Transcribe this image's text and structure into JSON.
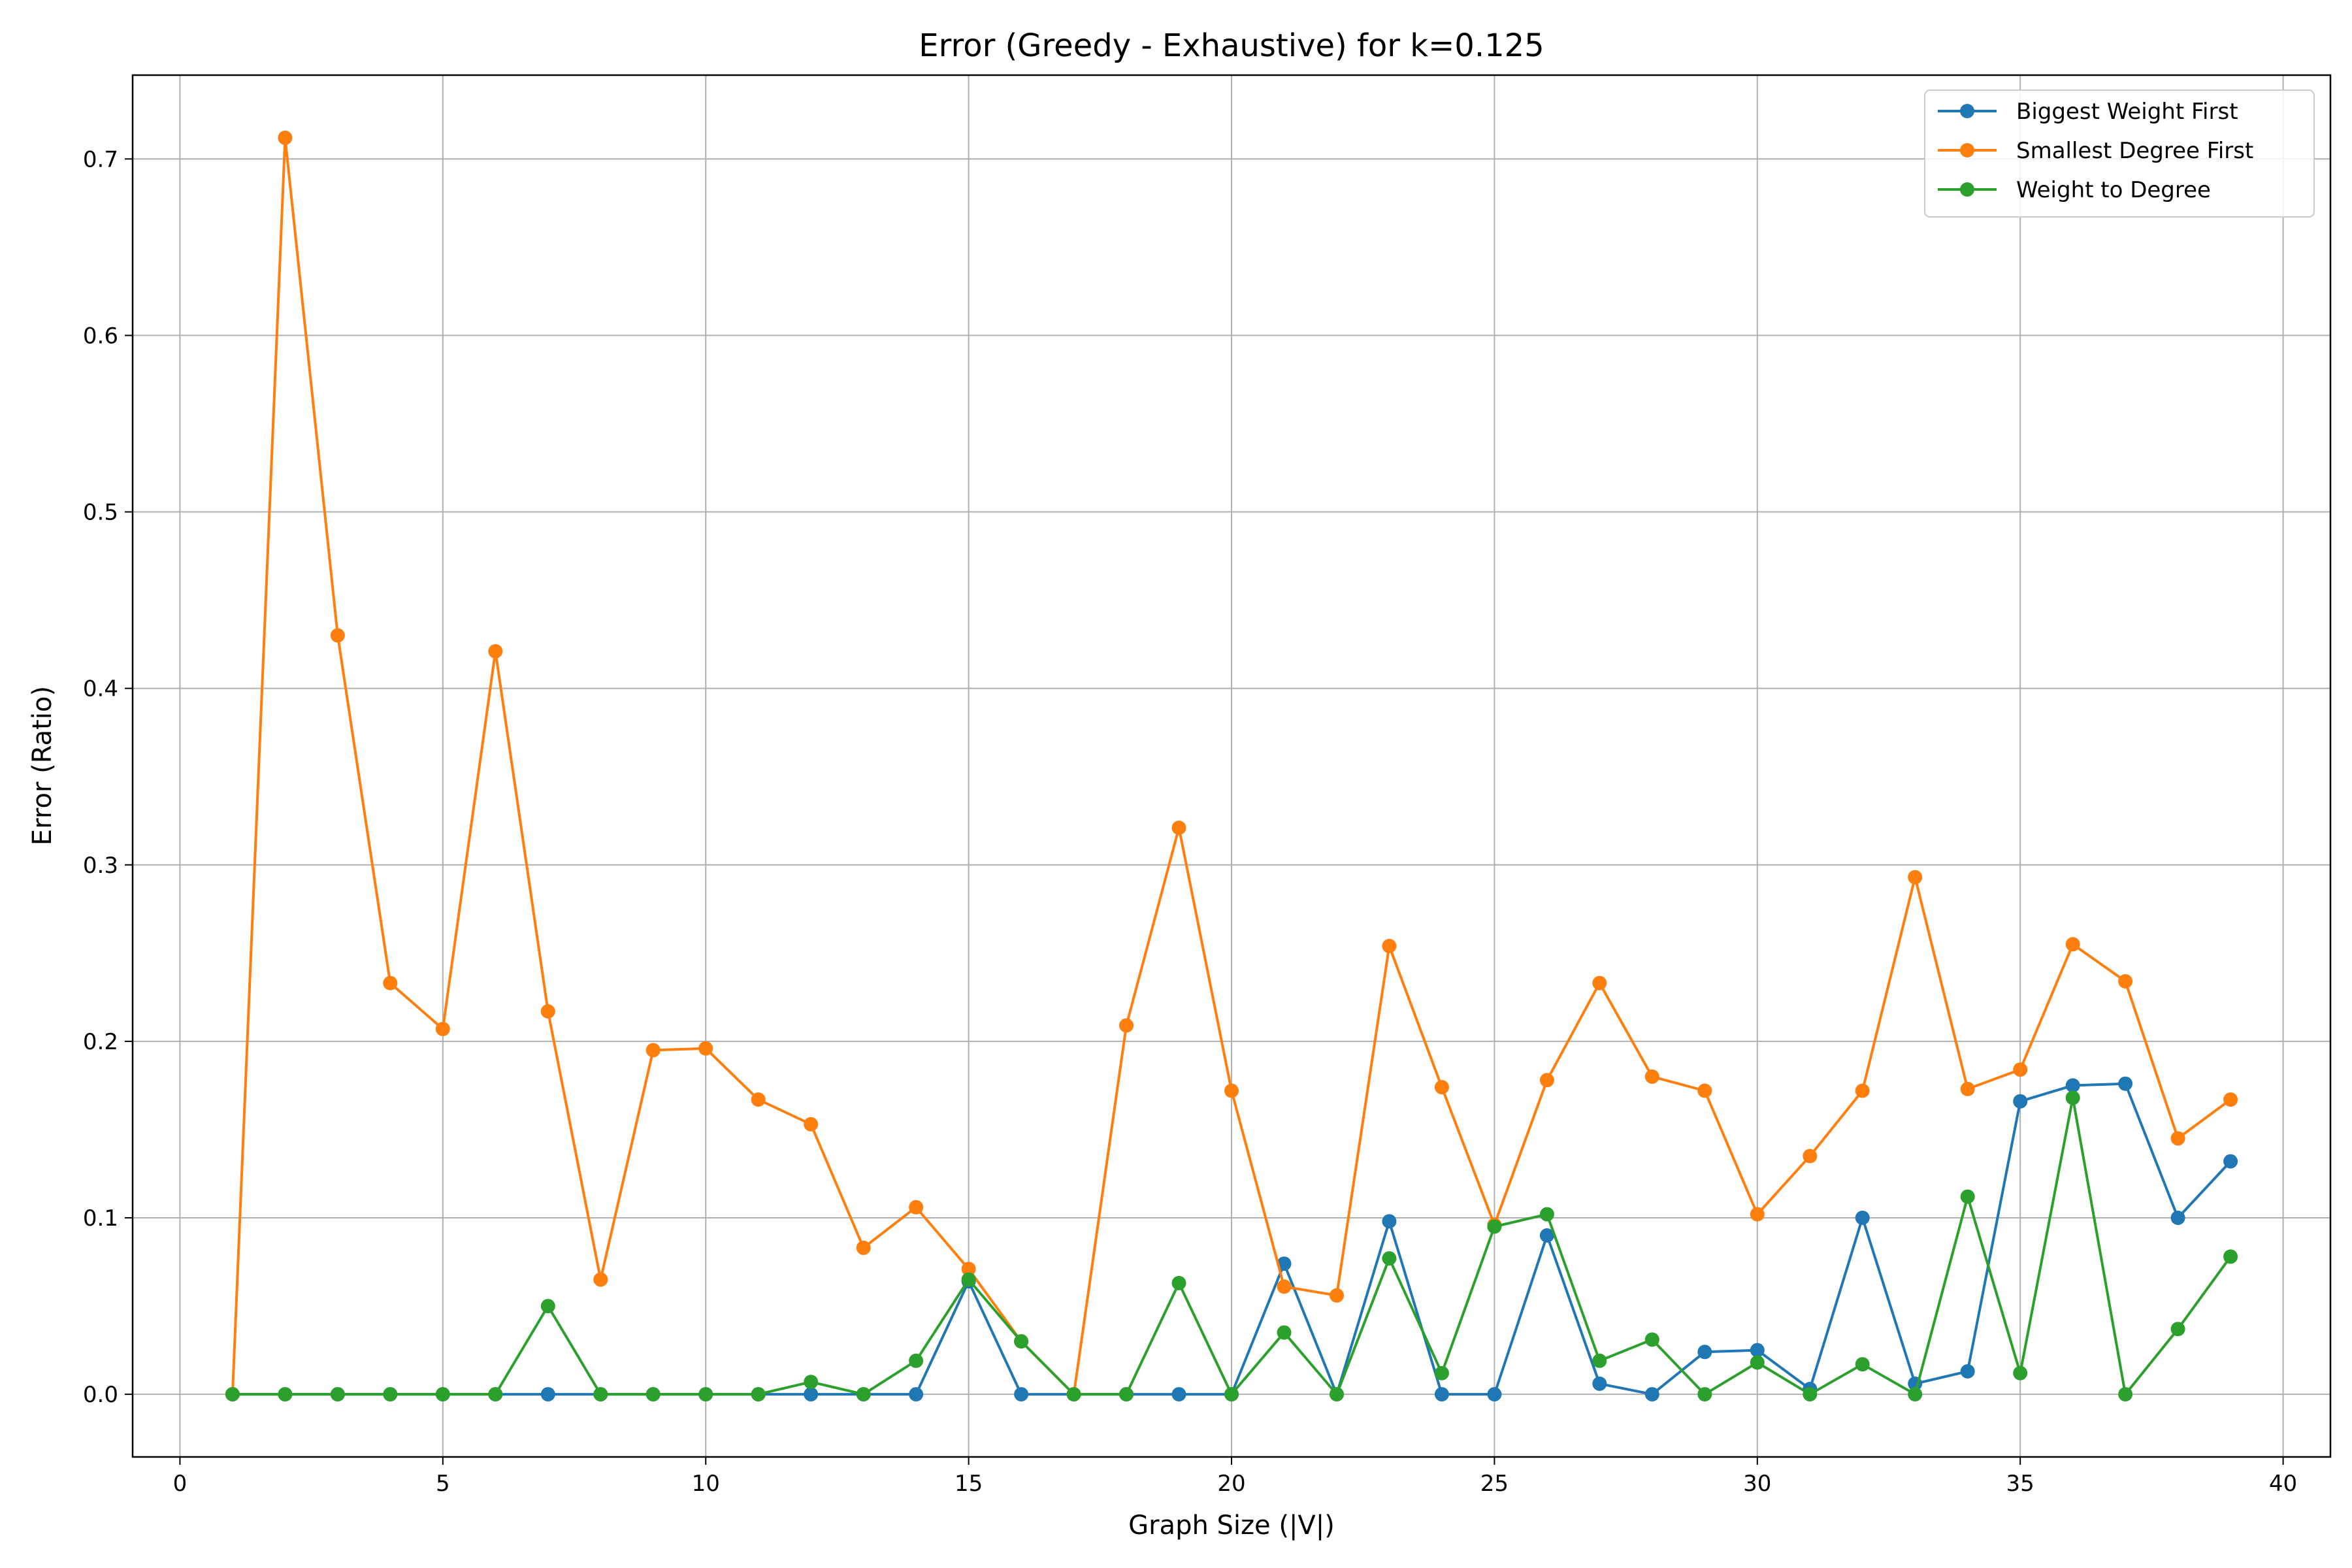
{
  "chart_data": {
    "type": "line",
    "title": "Error (Greedy - Exhaustive) for k=0.125",
    "xlabel": "Graph Size (|V|)",
    "ylabel": "Error (Ratio)",
    "xlim": [
      -0.9,
      40.9
    ],
    "ylim": [
      -0.0355,
      0.7475
    ],
    "xticks": [
      0,
      5,
      10,
      15,
      20,
      25,
      30,
      35,
      40
    ],
    "xtick_labels": [
      "0",
      "5",
      "10",
      "15",
      "20",
      "25",
      "30",
      "35",
      "40"
    ],
    "yticks": [
      0.0,
      0.1,
      0.2,
      0.3,
      0.4,
      0.5,
      0.6,
      0.7
    ],
    "ytick_labels": [
      "0.0",
      "0.1",
      "0.2",
      "0.3",
      "0.4",
      "0.5",
      "0.6",
      "0.7"
    ],
    "grid": true,
    "legend_position": "top-right",
    "x": [
      1,
      2,
      3,
      4,
      5,
      6,
      7,
      8,
      9,
      10,
      11,
      12,
      13,
      14,
      15,
      16,
      17,
      18,
      19,
      20,
      21,
      22,
      23,
      24,
      25,
      26,
      27,
      28,
      29,
      30,
      31,
      32,
      33,
      34,
      35,
      36,
      37,
      38,
      39
    ],
    "series": [
      {
        "name": "Biggest Weight First",
        "color": "#1f77b4",
        "values": [
          0,
          0,
          0,
          0,
          0,
          0,
          0,
          0,
          0,
          0,
          0,
          0,
          0,
          0,
          0.064,
          0,
          0,
          0,
          0,
          0,
          0.074,
          0,
          0.098,
          0,
          0,
          0.09,
          0.006,
          0,
          0.024,
          0.025,
          0.003,
          0.1,
          0.006,
          0.013,
          0.166,
          0.175,
          0.176,
          0.1,
          0.132
        ]
      },
      {
        "name": "Smallest Degree First",
        "color": "#ff7f0e",
        "values": [
          0,
          0.712,
          0.43,
          0.233,
          0.207,
          0.421,
          0.217,
          0.065,
          0.195,
          0.196,
          0.167,
          0.153,
          0.083,
          0.106,
          0.071,
          0.03,
          0,
          0.209,
          0.321,
          0.172,
          0.061,
          0.056,
          0.254,
          0.174,
          0.096,
          0.178,
          0.233,
          0.18,
          0.172,
          0.102,
          0.135,
          0.172,
          0.293,
          0.173,
          0.184,
          0.255,
          0.234,
          0.145,
          0.167
        ]
      },
      {
        "name": "Weight to Degree",
        "color": "#2ca02c",
        "values": [
          0,
          0,
          0,
          0,
          0,
          0,
          0.05,
          0,
          0,
          0,
          0,
          0.007,
          0,
          0.019,
          0.065,
          0.03,
          0,
          0,
          0.063,
          0,
          0.035,
          0,
          0.077,
          0.012,
          0.095,
          0.102,
          0.019,
          0.031,
          0,
          0.018,
          0,
          0.017,
          0,
          0.112,
          0.012,
          0.168,
          0,
          0.037,
          0.078
        ]
      }
    ]
  }
}
